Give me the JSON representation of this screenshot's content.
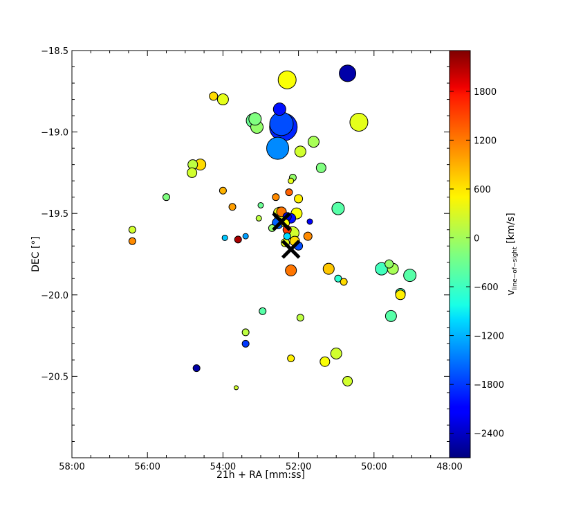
{
  "chart_data": {
    "type": "scatter",
    "xlabel": "21h + RA [mm:ss]",
    "ylabel": "DEC [°]",
    "xlim_minutes": [
      58,
      48
    ],
    "ylim": [
      -21.0,
      -18.5
    ],
    "x_ticks": [
      {
        "value": 58,
        "label": "58:00"
      },
      {
        "value": 56,
        "label": "56:00"
      },
      {
        "value": 54,
        "label": "54:00"
      },
      {
        "value": 52,
        "label": "52:00"
      },
      {
        "value": 50,
        "label": "50:00"
      },
      {
        "value": 48,
        "label": "48:00"
      }
    ],
    "y_ticks": [
      {
        "value": -18.5,
        "label": "−18.5"
      },
      {
        "value": -19.0,
        "label": "−19.0"
      },
      {
        "value": -19.5,
        "label": "−19.5"
      },
      {
        "value": -20.0,
        "label": "−20.0"
      },
      {
        "value": -20.5,
        "label": "−20.5"
      }
    ],
    "colorbar": {
      "label_main": "v",
      "label_sub": "line−of−sight",
      "label_unit": " [km/s]",
      "range": [
        -2700,
        2300
      ],
      "ticks": [
        {
          "value": 1800,
          "label": "1800"
        },
        {
          "value": 1200,
          "label": "1200"
        },
        {
          "value": 600,
          "label": "600"
        },
        {
          "value": 0,
          "label": "0"
        },
        {
          "value": -600,
          "label": "−600"
        },
        {
          "value": -1200,
          "label": "−1200"
        },
        {
          "value": -1800,
          "label": "−1800"
        },
        {
          "value": -2400,
          "label": "−2400"
        }
      ],
      "colormap": "jet"
    },
    "markers_x": [
      {
        "ra_min": 52.45,
        "dec": -19.55
      },
      {
        "ra_min": 52.2,
        "dec": -19.72
      }
    ],
    "points": [
      {
        "ra_min": 52.3,
        "dec": -18.68,
        "v": 400,
        "size": 13
      },
      {
        "ra_min": 50.7,
        "dec": -18.64,
        "v": -2500,
        "size": 12
      },
      {
        "ra_min": 54.25,
        "dec": -18.78,
        "v": 600,
        "size": 6
      },
      {
        "ra_min": 54.0,
        "dec": -18.8,
        "v": 300,
        "size": 8
      },
      {
        "ra_min": 52.5,
        "dec": -18.86,
        "v": -2000,
        "size": 9
      },
      {
        "ra_min": 53.2,
        "dec": -18.93,
        "v": -300,
        "size": 10
      },
      {
        "ra_min": 53.1,
        "dec": -18.97,
        "v": -100,
        "size": 9
      },
      {
        "ra_min": 53.15,
        "dec": -18.92,
        "v": -200,
        "size": 9
      },
      {
        "ra_min": 52.4,
        "dec": -18.97,
        "v": -1900,
        "size": 20
      },
      {
        "ra_min": 52.45,
        "dec": -18.95,
        "v": -1700,
        "size": 17
      },
      {
        "ra_min": 50.4,
        "dec": -18.94,
        "v": 300,
        "size": 13
      },
      {
        "ra_min": 51.6,
        "dec": -19.06,
        "v": 0,
        "size": 8
      },
      {
        "ra_min": 51.95,
        "dec": -19.12,
        "v": 200,
        "size": 8
      },
      {
        "ra_min": 52.55,
        "dec": -19.1,
        "v": -1400,
        "size": 16
      },
      {
        "ra_min": 54.8,
        "dec": -19.2,
        "v": 100,
        "size": 7
      },
      {
        "ra_min": 54.6,
        "dec": -19.2,
        "v": 600,
        "size": 8
      },
      {
        "ra_min": 54.82,
        "dec": -19.25,
        "v": 200,
        "size": 7
      },
      {
        "ra_min": 51.4,
        "dec": -19.22,
        "v": -200,
        "size": 7
      },
      {
        "ra_min": 52.15,
        "dec": -19.28,
        "v": -100,
        "size": 5
      },
      {
        "ra_min": 52.2,
        "dec": -19.3,
        "v": 300,
        "size": 4
      },
      {
        "ra_min": 55.5,
        "dec": -19.4,
        "v": -200,
        "size": 5
      },
      {
        "ra_min": 54.0,
        "dec": -19.36,
        "v": 800,
        "size": 5
      },
      {
        "ra_min": 52.6,
        "dec": -19.4,
        "v": 1000,
        "size": 5
      },
      {
        "ra_min": 52.25,
        "dec": -19.37,
        "v": 1200,
        "size": 5
      },
      {
        "ra_min": 52.0,
        "dec": -19.41,
        "v": 500,
        "size": 6
      },
      {
        "ra_min": 53.75,
        "dec": -19.46,
        "v": 900,
        "size": 5
      },
      {
        "ra_min": 53.0,
        "dec": -19.45,
        "v": -300,
        "size": 4
      },
      {
        "ra_min": 50.95,
        "dec": -19.47,
        "v": -400,
        "size": 9
      },
      {
        "ra_min": 52.5,
        "dec": -19.5,
        "v": 300,
        "size": 9
      },
      {
        "ra_min": 52.45,
        "dec": -19.49,
        "v": 1100,
        "size": 7
      },
      {
        "ra_min": 52.05,
        "dec": -19.5,
        "v": 400,
        "size": 8
      },
      {
        "ra_min": 52.3,
        "dec": -19.52,
        "v": -2200,
        "size": 6
      },
      {
        "ra_min": 52.2,
        "dec": -19.53,
        "v": -2000,
        "size": 7
      },
      {
        "ra_min": 51.7,
        "dec": -19.55,
        "v": -2100,
        "size": 4
      },
      {
        "ra_min": 53.05,
        "dec": -19.53,
        "v": 100,
        "size": 4
      },
      {
        "ra_min": 52.55,
        "dec": -19.56,
        "v": -1600,
        "size": 8
      },
      {
        "ra_min": 52.35,
        "dec": -19.56,
        "v": 400,
        "size": 6
      },
      {
        "ra_min": 52.7,
        "dec": -19.59,
        "v": -100,
        "size": 5
      },
      {
        "ra_min": 52.3,
        "dec": -19.6,
        "v": 1400,
        "size": 6
      },
      {
        "ra_min": 52.15,
        "dec": -19.62,
        "v": 200,
        "size": 9
      },
      {
        "ra_min": 52.3,
        "dec": -19.64,
        "v": -1000,
        "size": 5
      },
      {
        "ra_min": 51.75,
        "dec": -19.64,
        "v": 1000,
        "size": 6
      },
      {
        "ra_min": 52.1,
        "dec": -19.67,
        "v": 600,
        "size": 7
      },
      {
        "ra_min": 52.0,
        "dec": -19.7,
        "v": -1700,
        "size": 6
      },
      {
        "ra_min": 52.35,
        "dec": -19.68,
        "v": 300,
        "size": 6
      },
      {
        "ra_min": 56.4,
        "dec": -19.6,
        "v": 200,
        "size": 5
      },
      {
        "ra_min": 56.4,
        "dec": -19.67,
        "v": 1000,
        "size": 5
      },
      {
        "ra_min": 53.95,
        "dec": -19.65,
        "v": -1100,
        "size": 4
      },
      {
        "ra_min": 53.6,
        "dec": -19.66,
        "v": 2100,
        "size": 5
      },
      {
        "ra_min": 53.4,
        "dec": -19.64,
        "v": -1300,
        "size": 4
      },
      {
        "ra_min": 52.2,
        "dec": -19.85,
        "v": 1100,
        "size": 8
      },
      {
        "ra_min": 51.2,
        "dec": -19.84,
        "v": 700,
        "size": 8
      },
      {
        "ra_min": 50.95,
        "dec": -19.9,
        "v": -600,
        "size": 5
      },
      {
        "ra_min": 50.8,
        "dec": -19.92,
        "v": 600,
        "size": 5
      },
      {
        "ra_min": 49.8,
        "dec": -19.84,
        "v": -500,
        "size": 9
      },
      {
        "ra_min": 49.6,
        "dec": -19.81,
        "v": -100,
        "size": 6
      },
      {
        "ra_min": 49.5,
        "dec": -19.84,
        "v": 0,
        "size": 8
      },
      {
        "ra_min": 49.05,
        "dec": -19.88,
        "v": -400,
        "size": 9
      },
      {
        "ra_min": 49.3,
        "dec": -19.99,
        "v": -500,
        "size": 7
      },
      {
        "ra_min": 49.3,
        "dec": -20.0,
        "v": 500,
        "size": 7
      },
      {
        "ra_min": 49.55,
        "dec": -20.13,
        "v": -400,
        "size": 8
      },
      {
        "ra_min": 52.95,
        "dec": -20.1,
        "v": -400,
        "size": 5
      },
      {
        "ra_min": 51.95,
        "dec": -20.14,
        "v": 100,
        "size": 5
      },
      {
        "ra_min": 53.4,
        "dec": -20.23,
        "v": 100,
        "size": 5
      },
      {
        "ra_min": 53.4,
        "dec": -20.3,
        "v": -1800,
        "size": 5
      },
      {
        "ra_min": 52.2,
        "dec": -20.39,
        "v": 500,
        "size": 5
      },
      {
        "ra_min": 51.3,
        "dec": -20.41,
        "v": 400,
        "size": 7
      },
      {
        "ra_min": 51.0,
        "dec": -20.36,
        "v": 200,
        "size": 8
      },
      {
        "ra_min": 54.7,
        "dec": -20.45,
        "v": -2500,
        "size": 5
      },
      {
        "ra_min": 53.65,
        "dec": -20.57,
        "v": 200,
        "size": 3
      },
      {
        "ra_min": 50.7,
        "dec": -20.53,
        "v": 200,
        "size": 7
      }
    ]
  }
}
